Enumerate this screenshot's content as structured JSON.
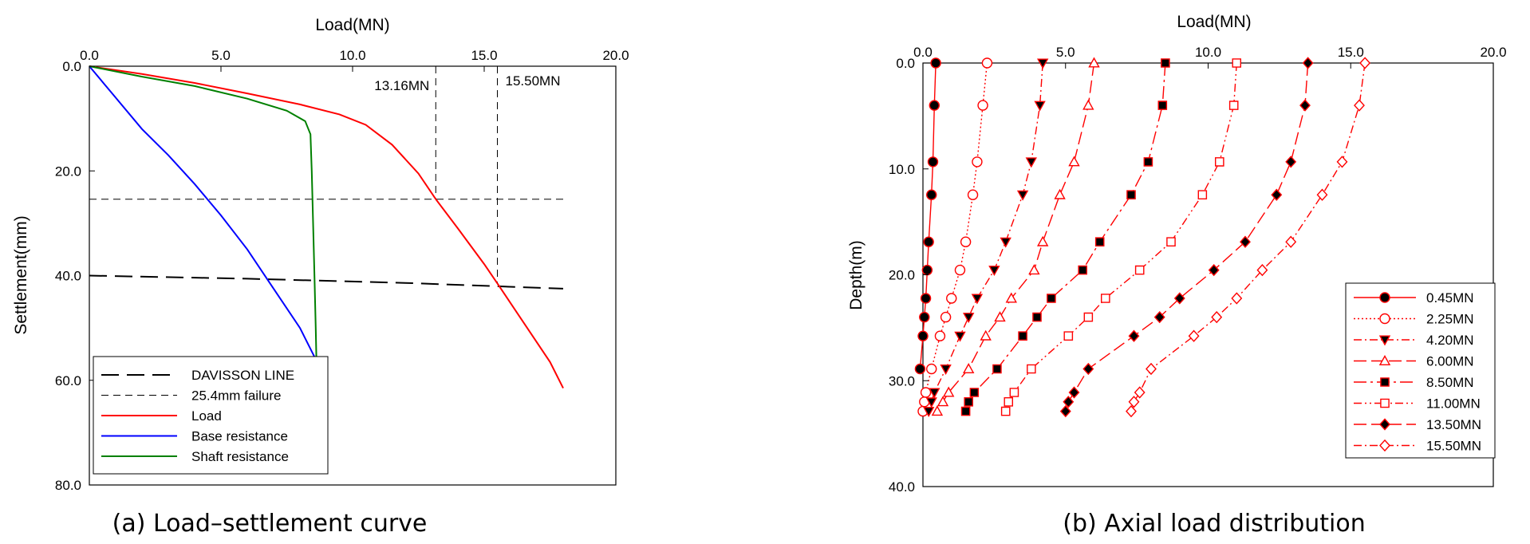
{
  "chart_data": [
    {
      "type": "line",
      "caption": "(a) Load–settlement curve",
      "xlabel": "Load(MN)",
      "ylabel": "Settlement(mm)",
      "xlim": [
        0,
        20
      ],
      "ylim": [
        0,
        80
      ],
      "y_inverted": true,
      "x_axis_position": "top",
      "xticks": [
        "0.0",
        "5.0",
        "10.0",
        "15.0",
        "20.0"
      ],
      "yticks": [
        "0.0",
        "20.0",
        "40.0",
        "60.0",
        "80.0"
      ],
      "annotations": [
        {
          "text": "13.16MN",
          "x": 13.16
        },
        {
          "text": "15.50MN",
          "x": 15.5
        }
      ],
      "legend_position": "bottom-left",
      "series": [
        {
          "name": "DAVISSON LINE",
          "color": "#000000",
          "dash": "long",
          "x": [
            0,
            6,
            12,
            18
          ],
          "y": [
            40,
            40.6,
            41.4,
            42.5
          ]
        },
        {
          "name": "25.4mm failure",
          "color": "#000000",
          "dash": "short",
          "x": [
            0,
            18
          ],
          "y": [
            25.4,
            25.4
          ]
        },
        {
          "name": "Load",
          "color": "#ff0000",
          "dash": "solid",
          "x": [
            0,
            2,
            4,
            6,
            8,
            9.5,
            10.5,
            11.5,
            12.5,
            13.16,
            14,
            15,
            15.5,
            16.5,
            17.5,
            18
          ],
          "y": [
            0,
            1.5,
            3.2,
            5.2,
            7.3,
            9.2,
            11.2,
            15,
            20.5,
            25.4,
            31,
            37.8,
            41.5,
            49,
            56.5,
            61.5
          ]
        },
        {
          "name": "Base resistance",
          "color": "#0000ff",
          "dash": "solid",
          "x": [
            0,
            1,
            2,
            3,
            4,
            5,
            6,
            7,
            8,
            8.5,
            9
          ],
          "y": [
            0,
            6,
            12,
            17,
            22.5,
            28.5,
            35,
            42.5,
            50,
            55,
            60
          ]
        },
        {
          "name": "Shaft resistance",
          "color": "#008000",
          "dash": "solid",
          "x": [
            0,
            2,
            4,
            6,
            7.5,
            8.2,
            8.4,
            8.45,
            8.5,
            8.55,
            8.6,
            8.65
          ],
          "y": [
            0,
            2,
            3.8,
            6.2,
            8.5,
            10.5,
            13,
            20,
            30,
            40,
            50,
            61.5
          ]
        }
      ]
    },
    {
      "type": "line",
      "caption": "(b) Axial load distribution",
      "xlabel": "Load(MN)",
      "ylabel": "Depth(m)",
      "xlim": [
        0,
        20
      ],
      "ylim": [
        0,
        45
      ],
      "y_inverted": true,
      "x_axis_position": "top",
      "xticks": [
        "0.0",
        "5.0",
        "10.0",
        "15.0",
        "20.0"
      ],
      "yticks": [
        "0.0",
        "10.0",
        "20.0",
        "30.0",
        "40.0"
      ],
      "legend_position": "bottom-right",
      "depth": [
        0,
        4.5,
        10.5,
        14,
        19,
        22,
        25,
        27,
        29,
        32.5,
        35,
        36,
        37
      ],
      "series": [
        {
          "name": "0.45MN",
          "marker": "circle",
          "fill": true,
          "dash": "solid",
          "values": [
            0.45,
            0.4,
            0.35,
            0.3,
            0.2,
            0.15,
            0.1,
            0.05,
            0.0,
            -0.1,
            null,
            null,
            null
          ]
        },
        {
          "name": "2.25MN",
          "marker": "circle",
          "fill": false,
          "dash": "dotted",
          "values": [
            2.25,
            2.1,
            1.9,
            1.75,
            1.5,
            1.3,
            1.0,
            0.8,
            0.6,
            0.3,
            0.1,
            0.05,
            0.0
          ]
        },
        {
          "name": "4.20MN",
          "marker": "triangle-down",
          "fill": true,
          "dash": "dashdot",
          "values": [
            4.2,
            4.1,
            3.8,
            3.5,
            2.9,
            2.5,
            1.9,
            1.6,
            1.3,
            0.8,
            0.4,
            0.3,
            0.2
          ]
        },
        {
          "name": "6.00MN",
          "marker": "triangle-up",
          "fill": false,
          "dash": "longdash",
          "values": [
            6.0,
            5.8,
            5.3,
            4.8,
            4.2,
            3.9,
            3.1,
            2.7,
            2.2,
            1.6,
            0.9,
            0.7,
            0.5
          ]
        },
        {
          "name": "8.50MN",
          "marker": "square",
          "fill": true,
          "dash": "longdashdot",
          "values": [
            8.5,
            8.4,
            7.9,
            7.3,
            6.2,
            5.6,
            4.5,
            4.0,
            3.5,
            2.6,
            1.8,
            1.6,
            1.5
          ]
        },
        {
          "name": "11.00MN",
          "marker": "square",
          "fill": false,
          "dash": "dashdotdot",
          "values": [
            11.0,
            10.9,
            10.4,
            9.8,
            8.7,
            7.6,
            6.4,
            5.8,
            5.1,
            3.8,
            3.2,
            3.0,
            2.9
          ]
        },
        {
          "name": "13.50MN",
          "marker": "diamond",
          "fill": true,
          "dash": "longdash",
          "values": [
            13.5,
            13.4,
            12.9,
            12.4,
            11.3,
            10.2,
            9.0,
            8.3,
            7.4,
            5.8,
            5.3,
            5.1,
            5.0
          ]
        },
        {
          "name": "15.50MN",
          "marker": "diamond",
          "fill": false,
          "dash": "dashdot",
          "values": [
            15.5,
            15.3,
            14.7,
            14.0,
            12.9,
            11.9,
            11.0,
            10.3,
            9.5,
            8.0,
            7.6,
            7.4,
            7.3
          ]
        }
      ]
    }
  ]
}
